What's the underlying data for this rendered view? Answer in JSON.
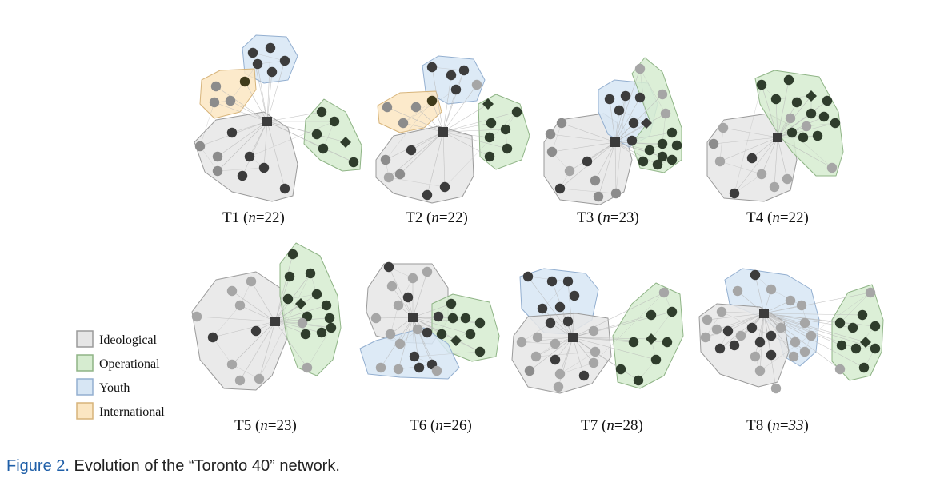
{
  "figure": {
    "panels": [
      {
        "id": "T1",
        "label": "T1",
        "n_text": "n",
        "n_value": "22"
      },
      {
        "id": "T2",
        "label": "T2",
        "n_text": "n",
        "n_value": "22"
      },
      {
        "id": "T3",
        "label": "T3",
        "n_text": "n",
        "n_value": "23"
      },
      {
        "id": "T4",
        "label": "T4",
        "n_text": "n",
        "n_value": "22"
      },
      {
        "id": "T5",
        "label": "T5",
        "n_text": "n",
        "n_value": "23"
      },
      {
        "id": "T6",
        "label": "T6",
        "n_text": "n",
        "n_value": "26"
      },
      {
        "id": "T7",
        "label": "T7",
        "n_text": "n",
        "n_value": "28"
      },
      {
        "id": "T8",
        "label": "T8",
        "n_text": "n",
        "n_value": "33"
      }
    ],
    "legend": [
      {
        "label": "Ideological",
        "color": "#e6e6e6",
        "stroke": "#9a9a9a"
      },
      {
        "label": "Operational",
        "color": "#d6ecd0",
        "stroke": "#8fb486"
      },
      {
        "label": "Youth",
        "color": "#d7e6f4",
        "stroke": "#93afd0"
      },
      {
        "label": "International",
        "color": "#fbe6c2",
        "stroke": "#d7b47a"
      }
    ],
    "colors": {
      "node_dark": "#3c3c3c",
      "node_grey": "#8c8c8c",
      "node_light": "#a6a6a6",
      "node_olive": "#3f3a1a",
      "node_green_dark": "#2f3d2c",
      "edge": "#b8b8b8"
    }
  },
  "caption": {
    "label": "Figure 2.",
    "text": "Evolution of the “Toronto 40” network."
  }
}
